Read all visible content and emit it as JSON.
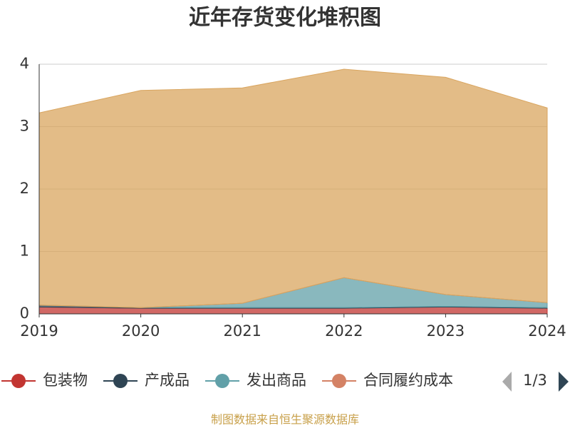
{
  "chart_data": {
    "type": "area",
    "stacked": true,
    "title": "近年存货变化堆积图",
    "categories": [
      "2019",
      "2020",
      "2021",
      "2022",
      "2023",
      "2024"
    ],
    "series": [
      {
        "name": "包装物",
        "color": "#c23531",
        "values": [
          0.11,
          0.09,
          0.09,
          0.09,
          0.11,
          0.09
        ]
      },
      {
        "name": "产成品",
        "color": "#2f4554",
        "values": [
          0.03,
          0.01,
          0.01,
          0.01,
          0.01,
          0.01
        ]
      },
      {
        "name": "发出商品",
        "color": "#61a0a8",
        "values": [
          0,
          0,
          0.07,
          0.48,
          0.19,
          0.08
        ]
      },
      {
        "name": "合同履约成本",
        "color": "#d48265",
        "values": [
          0,
          0,
          0,
          0,
          0,
          0
        ]
      },
      {
        "color": "#d9a55f",
        "values": [
          3.08,
          3.48,
          3.45,
          3.34,
          3.48,
          3.12
        ]
      }
    ],
    "ylim": [
      0,
      4
    ],
    "yticks": [
      0,
      1,
      2,
      3,
      4
    ],
    "grid": true,
    "legend": {
      "position": "bottom",
      "page": "1/3"
    },
    "source": "制图数据来自恒生聚源数据库"
  }
}
